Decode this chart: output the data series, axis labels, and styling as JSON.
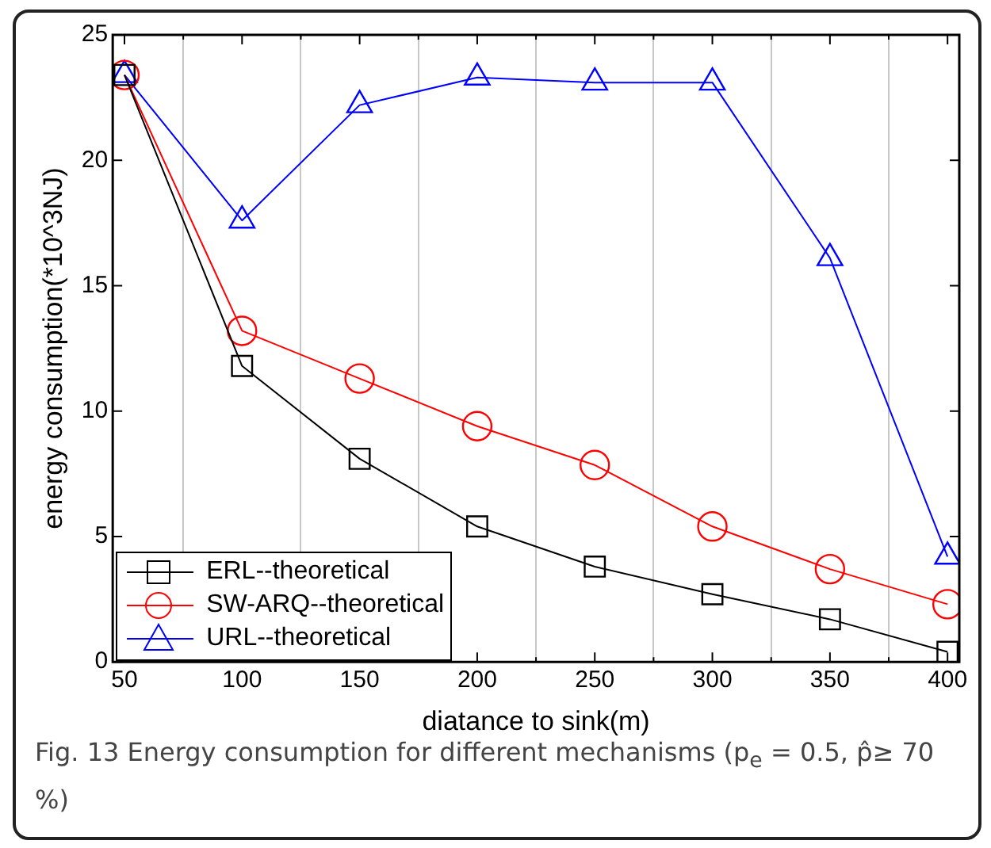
{
  "chart_data": {
    "type": "line",
    "xlabel": "diatance to sink(m)",
    "ylabel": "energy consumption(*10^3NJ)",
    "x": [
      50,
      100,
      150,
      200,
      250,
      300,
      350,
      400
    ],
    "series": [
      {
        "name": "ERL--theoretical",
        "color": "#000000",
        "marker": "square",
        "values": [
          23.4,
          11.8,
          8.1,
          5.4,
          3.8,
          2.7,
          1.7,
          0.4
        ]
      },
      {
        "name": "SW-ARQ--theoretical",
        "color": "#ff0000",
        "marker": "circle",
        "values": [
          23.4,
          13.2,
          11.3,
          9.4,
          7.85,
          5.4,
          3.7,
          2.3
        ]
      },
      {
        "name": "URL--theoretical",
        "color": "#0000ff",
        "marker": "triangle",
        "values": [
          23.4,
          17.6,
          22.2,
          23.3,
          23.1,
          23.1,
          16.1,
          4.2
        ]
      }
    ],
    "xlim": [
      45,
      405
    ],
    "xticks": [
      50,
      {
        "value": 75,
        "label": null
      },
      100,
      {
        "value": 125,
        "label": null
      },
      150,
      {
        "value": 175,
        "label": null
      },
      200,
      {
        "value": 225,
        "label": null
      },
      250,
      {
        "value": 275,
        "label": null
      },
      300,
      {
        "value": 325,
        "label": null
      },
      350,
      {
        "value": 375,
        "label": null
      },
      400
    ],
    "ylim": [
      0,
      25
    ],
    "yticks": [
      0,
      5,
      10,
      15,
      20,
      25
    ],
    "grid": "x",
    "legend": "bottom left",
    "annotations": [
      "Fig. 13 Energy consumption for different mechanisms (p$_{e}$ = 0.5, p̂≥ 70 %)"
    ]
  }
}
